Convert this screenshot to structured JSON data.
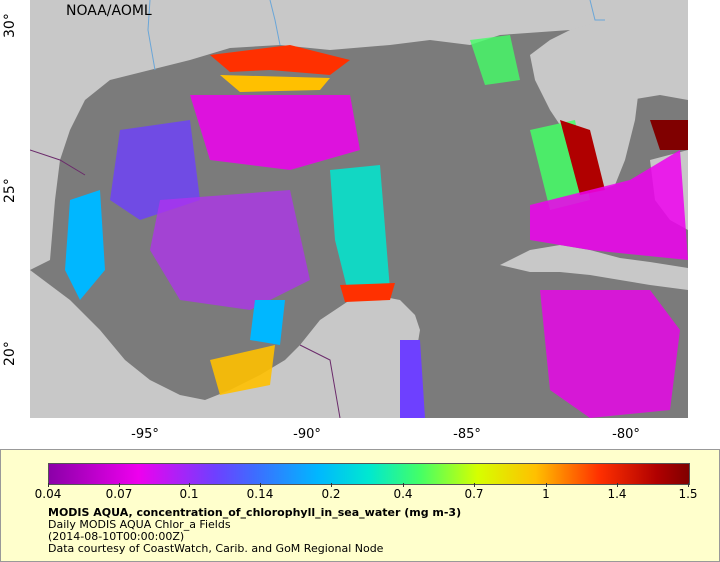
{
  "map": {
    "credit": "NOAA/AOML",
    "lat_ticks": [
      "30°",
      "25°",
      "20°"
    ],
    "lon_ticks": [
      "-95°",
      "-90°",
      "-85°",
      "-80°"
    ],
    "colors": {
      "land": "#c8c8c8",
      "no_data": "#7b7b7b",
      "rivers": "#6aa6d8",
      "borders": "#6b2b6b"
    }
  },
  "legend": {
    "colorbar_ticks": [
      "0.04",
      "0.07",
      "0.1",
      "0.14",
      "0.2",
      "0.4",
      "0.7",
      "1",
      "1.4",
      "1.5"
    ],
    "title": "MODIS AQUA, concentration_of_chlorophyll_in_sea_water (mg m-3)",
    "subtitle": "Daily MODIS AQUA Chlor_a Fields",
    "time": "(2014-08-10T00:00:00Z)",
    "courtesy": "Data courtesy of CoastWatch, Carib. and GoM Regional Node"
  }
}
